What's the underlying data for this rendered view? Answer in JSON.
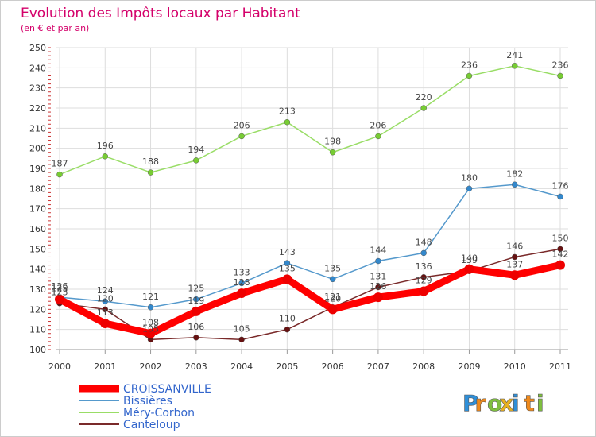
{
  "chart_data": {
    "type": "line",
    "title": "Evolution des Impôts locaux par Habitant",
    "subtitle": "(en € et par an)",
    "x": [
      "2000",
      "2001",
      "2002",
      "2003",
      "2004",
      "2005",
      "2006",
      "2007",
      "2008",
      "2009",
      "2010",
      "2011"
    ],
    "ylim": [
      100,
      250
    ],
    "yticks": [
      "100",
      "110",
      "120",
      "130",
      "140",
      "150",
      "160",
      "170",
      "180",
      "190",
      "200",
      "210",
      "220",
      "230",
      "240",
      "250"
    ],
    "grid": true,
    "legend_position": "bottom-left",
    "series": [
      {
        "name": "Méry-Corbon",
        "color": "#99dd66",
        "dot_color": "#77cc33",
        "values": [
          187,
          196,
          188,
          194,
          206,
          213,
          198,
          206,
          220,
          236,
          241,
          236
        ],
        "labels": [
          "187",
          "196",
          "188",
          "194",
          "206",
          "213",
          "198",
          "206",
          "220",
          "236",
          "241",
          "236"
        ]
      },
      {
        "name": "Bissières",
        "color": "#5599cc",
        "dot_color": "#3388cc",
        "values": [
          126,
          124,
          121,
          125,
          133,
          143,
          135,
          144,
          148,
          180,
          182,
          176
        ],
        "labels": [
          "126",
          "124",
          "121",
          "125",
          "133",
          "143",
          "135",
          "144",
          "148",
          "180",
          "182",
          "176"
        ]
      },
      {
        "name": "Canteloup",
        "color": "#7a2a2a",
        "dot_color": "#661111",
        "values": [
          123,
          120,
          105,
          106,
          105,
          110,
          121,
          131,
          136,
          139,
          146,
          150
        ],
        "labels": [
          "123",
          "120",
          "105",
          "106",
          "105",
          "110",
          "121",
          "131",
          "136",
          "139",
          "146",
          "150"
        ]
      },
      {
        "name": "CROISSANVILLE",
        "color": "#ff0000",
        "dot_color": "#ee0000",
        "values": [
          125,
          113,
          108,
          119,
          128,
          135,
          120,
          126,
          129,
          140,
          137,
          142
        ],
        "labels": [
          "125",
          "113",
          "108",
          "119",
          "128",
          "135",
          "120",
          "126",
          "129",
          "140",
          "137",
          "142"
        ]
      }
    ],
    "legend": [
      {
        "name": "CROISSANVILLE",
        "color": "#ff0000"
      },
      {
        "name": "Bissières",
        "color": "#5599cc"
      },
      {
        "name": "Méry-Corbon",
        "color": "#99dd66"
      },
      {
        "name": "Canteloup",
        "color": "#7a2a2a"
      }
    ],
    "logo": {
      "letters": [
        "P",
        "r",
        "o",
        "x",
        "i",
        "t",
        "i"
      ],
      "colors": [
        "#2f8fd8",
        "#f08a1c",
        "#7fbf3f",
        "#e8b020",
        "#2f8fd8",
        "#f08a1c",
        "#7fbf3f"
      ]
    }
  }
}
